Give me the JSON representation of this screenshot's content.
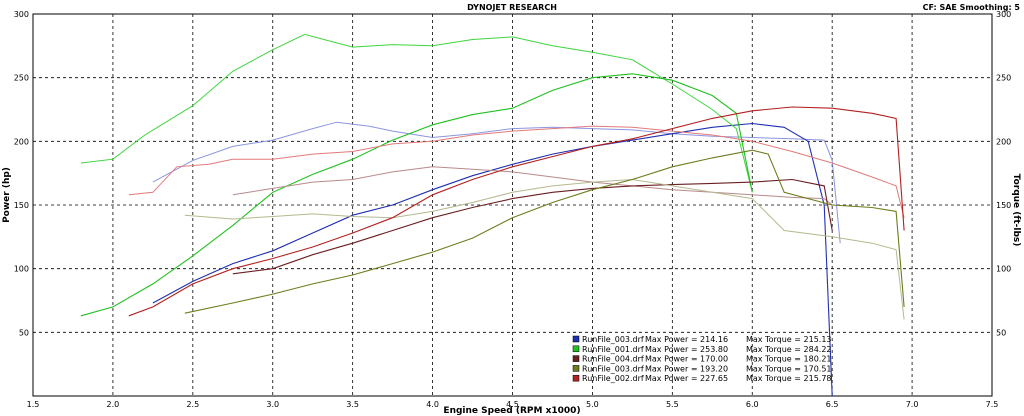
{
  "chart_data": {
    "type": "line",
    "title": "DYNOJET RESEARCH",
    "corner_note": "CF: SAE  Smoothing: 5",
    "xlabel": "Engine Speed (RPM x1000)",
    "ylabel": "Power (hp)",
    "y2label": "Torque (ft-lbs)",
    "xlim": [
      1.5,
      7.5
    ],
    "ylim": [
      0,
      300
    ],
    "y2lim": [
      0,
      300
    ],
    "grid": true,
    "legend_position": "bottom-center",
    "x_ticks": [
      "1.5",
      "2.0",
      "2.5",
      "3.0",
      "3.5",
      "4.0",
      "4.5",
      "5.0",
      "5.5",
      "6.0",
      "6.5",
      "7.0",
      "7.5"
    ],
    "y_ticks": [
      "50",
      "100",
      "150",
      "200",
      "250",
      "300"
    ],
    "y2_ticks": [
      "50",
      "100",
      "150",
      "200",
      "250",
      "300"
    ],
    "series": [
      {
        "name": "RunFile_003.drf",
        "max_power_text": "Max Power = 214.16",
        "max_torque_text": "Max Torque = 215.13",
        "color": "#1f2fb0",
        "torque_color": "#8b95e0",
        "power": [
          [
            2.25,
            73
          ],
          [
            2.5,
            90
          ],
          [
            2.75,
            104
          ],
          [
            3.0,
            114
          ],
          [
            3.25,
            128
          ],
          [
            3.5,
            142
          ],
          [
            3.75,
            150
          ],
          [
            4.0,
            162
          ],
          [
            4.25,
            173
          ],
          [
            4.5,
            182
          ],
          [
            4.75,
            190
          ],
          [
            5.0,
            196
          ],
          [
            5.25,
            201
          ],
          [
            5.5,
            206
          ],
          [
            5.75,
            211
          ],
          [
            6.0,
            214
          ],
          [
            6.2,
            211
          ],
          [
            6.35,
            200
          ],
          [
            6.45,
            150
          ],
          [
            6.5,
            0
          ]
        ],
        "torque": [
          [
            2.25,
            168
          ],
          [
            2.5,
            185
          ],
          [
            2.75,
            196
          ],
          [
            3.0,
            201
          ],
          [
            3.25,
            210
          ],
          [
            3.4,
            215
          ],
          [
            3.6,
            212
          ],
          [
            3.75,
            208
          ],
          [
            4.0,
            203
          ],
          [
            4.25,
            206
          ],
          [
            4.5,
            210
          ],
          [
            4.75,
            211
          ],
          [
            5.0,
            210
          ],
          [
            5.25,
            209
          ],
          [
            5.5,
            206
          ],
          [
            5.75,
            204
          ],
          [
            6.0,
            203
          ],
          [
            6.25,
            202
          ],
          [
            6.45,
            201
          ],
          [
            6.5,
            185
          ],
          [
            6.55,
            120
          ]
        ]
      },
      {
        "name": "RunFile_001.drf",
        "max_power_text": "Max Power = 253.80",
        "max_torque_text": "Max Torque = 284.22",
        "color": "#21c021",
        "torque_color": "#3ed63e",
        "power": [
          [
            1.8,
            63
          ],
          [
            2.0,
            70
          ],
          [
            2.25,
            88
          ],
          [
            2.5,
            110
          ],
          [
            2.75,
            134
          ],
          [
            3.0,
            160
          ],
          [
            3.25,
            174
          ],
          [
            3.5,
            186
          ],
          [
            3.75,
            201
          ],
          [
            4.0,
            213
          ],
          [
            4.25,
            221
          ],
          [
            4.5,
            226
          ],
          [
            4.75,
            240
          ],
          [
            5.0,
            250
          ],
          [
            5.25,
            253
          ],
          [
            5.5,
            248
          ],
          [
            5.75,
            236
          ],
          [
            5.9,
            222
          ],
          [
            6.0,
            160
          ]
        ],
        "torque": [
          [
            1.8,
            183
          ],
          [
            2.0,
            186
          ],
          [
            2.2,
            205
          ],
          [
            2.5,
            228
          ],
          [
            2.75,
            255
          ],
          [
            3.0,
            272
          ],
          [
            3.2,
            284
          ],
          [
            3.5,
            274
          ],
          [
            3.75,
            276
          ],
          [
            4.0,
            275
          ],
          [
            4.25,
            280
          ],
          [
            4.5,
            282
          ],
          [
            4.75,
            275
          ],
          [
            5.0,
            270
          ],
          [
            5.25,
            264
          ],
          [
            5.5,
            245
          ],
          [
            5.75,
            225
          ],
          [
            5.9,
            210
          ],
          [
            6.0,
            160
          ]
        ]
      },
      {
        "name": "RunFile_004.drf",
        "max_power_text": "Max Power = 170.00",
        "max_torque_text": "Max Torque = 180.21",
        "color": "#6b1e22",
        "torque_color": "#b98a8a",
        "power": [
          [
            2.75,
            96
          ],
          [
            3.0,
            100
          ],
          [
            3.25,
            111
          ],
          [
            3.5,
            120
          ],
          [
            3.75,
            130
          ],
          [
            4.0,
            140
          ],
          [
            4.25,
            148
          ],
          [
            4.5,
            155
          ],
          [
            4.75,
            160
          ],
          [
            5.0,
            163
          ],
          [
            5.25,
            165
          ],
          [
            5.5,
            166
          ],
          [
            5.75,
            167
          ],
          [
            6.0,
            168
          ],
          [
            6.25,
            170
          ],
          [
            6.45,
            165
          ],
          [
            6.5,
            130
          ]
        ],
        "torque": [
          [
            2.75,
            158
          ],
          [
            3.0,
            163
          ],
          [
            3.25,
            168
          ],
          [
            3.5,
            170
          ],
          [
            3.75,
            176
          ],
          [
            4.0,
            180
          ],
          [
            4.25,
            178
          ],
          [
            4.5,
            176
          ],
          [
            4.75,
            172
          ],
          [
            5.0,
            168
          ],
          [
            5.25,
            165
          ],
          [
            5.5,
            162
          ],
          [
            5.75,
            160
          ],
          [
            6.0,
            158
          ],
          [
            6.25,
            156
          ],
          [
            6.45,
            155
          ],
          [
            6.5,
            150
          ]
        ]
      },
      {
        "name": "RunFile_003.drf",
        "max_power_text": "Max Power = 193.20",
        "max_torque_text": "Max Torque = 170.51",
        "color": "#6d7d1e",
        "torque_color": "#b5b98e",
        "power": [
          [
            2.45,
            65
          ],
          [
            2.75,
            73
          ],
          [
            3.0,
            80
          ],
          [
            3.25,
            88
          ],
          [
            3.5,
            95
          ],
          [
            3.75,
            104
          ],
          [
            4.0,
            113
          ],
          [
            4.25,
            124
          ],
          [
            4.5,
            140
          ],
          [
            4.75,
            152
          ],
          [
            5.0,
            162
          ],
          [
            5.25,
            170
          ],
          [
            5.5,
            180
          ],
          [
            5.75,
            187
          ],
          [
            6.0,
            193
          ],
          [
            6.1,
            190
          ],
          [
            6.2,
            160
          ],
          [
            6.5,
            150
          ],
          [
            6.75,
            148
          ],
          [
            6.9,
            145
          ],
          [
            6.95,
            70
          ]
        ],
        "torque": [
          [
            2.45,
            142
          ],
          [
            2.75,
            139
          ],
          [
            3.0,
            141
          ],
          [
            3.25,
            143
          ],
          [
            3.5,
            141
          ],
          [
            3.75,
            140
          ],
          [
            4.0,
            145
          ],
          [
            4.25,
            152
          ],
          [
            4.5,
            160
          ],
          [
            4.75,
            165
          ],
          [
            5.0,
            168
          ],
          [
            5.25,
            170
          ],
          [
            5.5,
            165
          ],
          [
            5.75,
            160
          ],
          [
            6.0,
            155
          ],
          [
            6.2,
            130
          ],
          [
            6.5,
            125
          ],
          [
            6.75,
            120
          ],
          [
            6.9,
            115
          ],
          [
            6.95,
            60
          ]
        ]
      },
      {
        "name": "RunFile_002.drf",
        "max_power_text": "Max Power = 227.65",
        "max_torque_text": "Max Torque = 215.78",
        "color": "#b32020",
        "torque_color": "#e27a7a",
        "power": [
          [
            2.1,
            63
          ],
          [
            2.25,
            70
          ],
          [
            2.5,
            88
          ],
          [
            2.75,
            100
          ],
          [
            3.0,
            108
          ],
          [
            3.25,
            117
          ],
          [
            3.5,
            128
          ],
          [
            3.75,
            140
          ],
          [
            4.0,
            158
          ],
          [
            4.25,
            170
          ],
          [
            4.5,
            180
          ],
          [
            4.75,
            188
          ],
          [
            5.0,
            196
          ],
          [
            5.25,
            202
          ],
          [
            5.5,
            210
          ],
          [
            5.75,
            218
          ],
          [
            6.0,
            224
          ],
          [
            6.25,
            227
          ],
          [
            6.5,
            226
          ],
          [
            6.75,
            222
          ],
          [
            6.9,
            218
          ],
          [
            6.95,
            130
          ]
        ],
        "torque": [
          [
            2.1,
            158
          ],
          [
            2.25,
            160
          ],
          [
            2.4,
            180
          ],
          [
            2.6,
            182
          ],
          [
            2.75,
            186
          ],
          [
            3.0,
            186
          ],
          [
            3.25,
            190
          ],
          [
            3.5,
            192
          ],
          [
            3.75,
            198
          ],
          [
            4.0,
            200
          ],
          [
            4.25,
            205
          ],
          [
            4.5,
            208
          ],
          [
            4.75,
            210
          ],
          [
            5.0,
            212
          ],
          [
            5.25,
            211
          ],
          [
            5.5,
            208
          ],
          [
            5.75,
            205
          ],
          [
            6.0,
            200
          ],
          [
            6.25,
            192
          ],
          [
            6.5,
            183
          ],
          [
            6.75,
            172
          ],
          [
            6.9,
            165
          ],
          [
            6.95,
            140
          ]
        ]
      }
    ]
  }
}
